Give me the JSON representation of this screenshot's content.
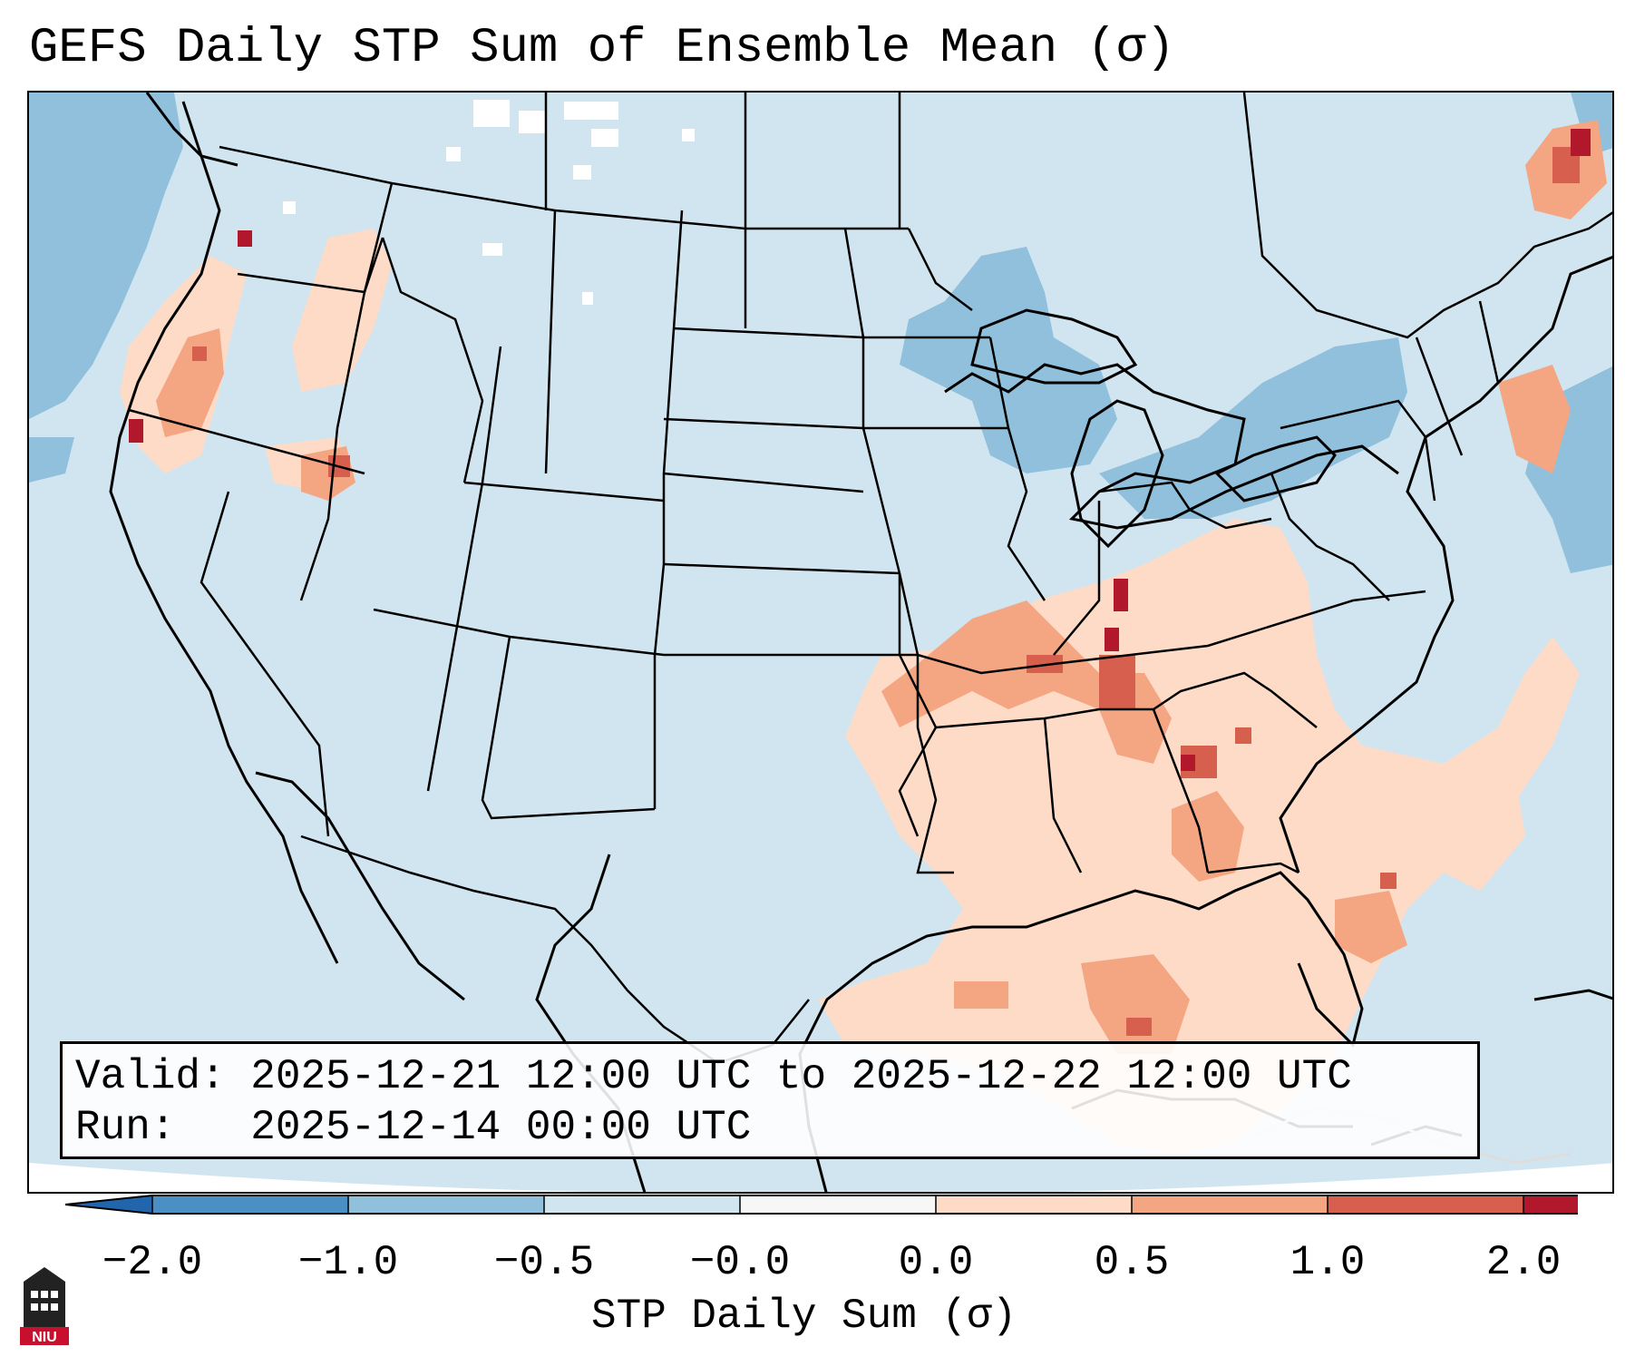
{
  "title": "GEFS Daily STP Sum of Ensemble Mean (σ)",
  "valid_line": "Valid: 2025-12-21 12:00 UTC to 2025-12-22 12:00 UTC",
  "run_line": "Run:   2025-12-14 00:00 UTC",
  "colorbar": {
    "label": "STP Daily Sum (σ)",
    "ticks": [
      "−2.0",
      "−1.0",
      "−0.5",
      "−0.0",
      "0.0",
      "0.5",
      "1.0",
      "2.0"
    ],
    "colors": [
      "#4a90c4",
      "#90c0dc",
      "#d1e5f0",
      "#f7f7f7",
      "#fddbc7",
      "#f4a582",
      "#d6604d",
      "#b2182b"
    ]
  },
  "map": {
    "background_value_color": "#d1e5f0",
    "high_anomaly_regions": [
      "Kentucky",
      "Tennessee",
      "Alabama",
      "Georgia",
      "Gulf of Mexico",
      "Oregon",
      "Quebec"
    ],
    "low_anomaly_regions": [
      "Great Lakes",
      "Pacific Northwest coast",
      "Western Atlantic"
    ]
  },
  "logo": {
    "text": "NIU",
    "color": "#c8102e"
  }
}
